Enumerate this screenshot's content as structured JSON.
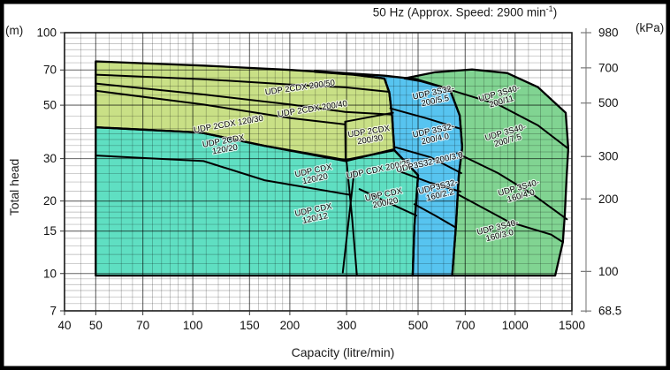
{
  "figure": {
    "title": {
      "prefix": "50 Hz (Approx. Speed: 2900 min",
      "sup": "-1",
      "suffix": ")"
    },
    "left_unit": "(m)",
    "right_unit": "(kPa)",
    "y_axis_title": "Total head",
    "x_axis_title": "Capacity (litre/min)"
  },
  "chart_data": {
    "type": "area",
    "title": "50 Hz (Approx. Speed: 2900 min^-1)",
    "x_axis": {
      "label": "Capacity (litre/min)",
      "scale": "log",
      "range": [
        40,
        1500
      ],
      "major_ticks": [
        40,
        50,
        70,
        100,
        150,
        200,
        300,
        500,
        700,
        1000,
        1500
      ],
      "minor_ticks": [
        45,
        55,
        60,
        65,
        75,
        80,
        85,
        90,
        95,
        110,
        120,
        130,
        140,
        160,
        170,
        180,
        190,
        220,
        240,
        260,
        280,
        320,
        340,
        360,
        380,
        400,
        420,
        440,
        460,
        480,
        550,
        600,
        650,
        750,
        800,
        850,
        900,
        950,
        1100,
        1200,
        1300,
        1400
      ]
    },
    "y_axis": {
      "label": "Total head (m)",
      "scale": "log",
      "range": [
        7,
        100
      ],
      "major_ticks": [
        100,
        70,
        50,
        30,
        20,
        15,
        10,
        7
      ],
      "minor_ticks": [
        7.5,
        8,
        8.5,
        9,
        9.5,
        11,
        12,
        13,
        14,
        16,
        17,
        18,
        19,
        22,
        24,
        26,
        28,
        32,
        34,
        36,
        38,
        40,
        45,
        55,
        60,
        65,
        75,
        80,
        85,
        90,
        95
      ]
    },
    "y_axis_right": {
      "label": "kPa",
      "ticks": [
        980,
        700,
        500,
        300,
        200,
        100,
        68.5
      ],
      "kpa_per_m": 9.8
    },
    "grid": "log-log, minor and major lines",
    "legend_position": "labels inside regions",
    "families": [
      {
        "name": "udp-2cdx",
        "color": "#c9e086",
        "points": [
          [
            50,
            76
          ],
          [
            108,
            73
          ],
          [
            201,
            70
          ],
          [
            239,
            69
          ],
          [
            315,
            67
          ],
          [
            393,
            64.5
          ],
          [
            407,
            56.5
          ],
          [
            415,
            45.3
          ],
          [
            422,
            32.8
          ],
          [
            298,
            29.3
          ],
          [
            167,
            33.9
          ],
          [
            106,
            38.5
          ],
          [
            50,
            40.5
          ]
        ]
      },
      {
        "name": "udp-cdx",
        "color": "#5fdfc2",
        "points": [
          [
            50,
            40.5
          ],
          [
            106,
            38.5
          ],
          [
            167,
            33.9
          ],
          [
            297,
            29.6
          ],
          [
            422,
            32.5
          ],
          [
            500,
            25.6
          ],
          [
            487,
            15.7
          ],
          [
            481,
            9.8
          ],
          [
            50,
            9.8
          ]
        ]
      },
      {
        "name": "udp-3s32",
        "color": "#57c4f0",
        "points": [
          [
            239,
            69.4
          ],
          [
            315,
            67.6
          ],
          [
            393,
            66.3
          ],
          [
            494,
            64.1
          ],
          [
            627,
            58.2
          ],
          [
            673,
            45.3
          ],
          [
            685,
            33.4
          ],
          [
            669,
            25.6
          ],
          [
            655,
            15.7
          ],
          [
            638,
            9.8
          ],
          [
            481,
            9.8
          ],
          [
            487,
            15.7
          ],
          [
            500,
            25.6
          ],
          [
            422,
            32.5
          ],
          [
            415,
            45.3
          ],
          [
            407,
            56.5
          ],
          [
            393,
            64.5
          ],
          [
            315,
            66.9
          ],
          [
            239,
            68.8
          ]
        ]
      },
      {
        "name": "udp-3s40",
        "color": "#81d492",
        "points": [
          [
            454,
            64.6
          ],
          [
            565,
            68.5
          ],
          [
            735,
            70.3
          ],
          [
            944,
            68
          ],
          [
            1177,
            59.4
          ],
          [
            1435,
            46.5
          ],
          [
            1462,
            33
          ],
          [
            1444,
            25
          ],
          [
            1426,
            17.6
          ],
          [
            1406,
            13.5
          ],
          [
            1331,
            9.8
          ],
          [
            638,
            9.8
          ],
          [
            655,
            15.7
          ],
          [
            669,
            25.6
          ],
          [
            685,
            33.4
          ],
          [
            673,
            45.3
          ],
          [
            627,
            58.2
          ],
          [
            510,
            62.9
          ]
        ]
      }
    ],
    "boundaries": [
      {
        "points": [
          [
            50,
            66.9
          ],
          [
            108,
            64.1
          ],
          [
            201,
            60.9
          ],
          [
            297,
            59.3
          ],
          [
            407,
            56.8
          ]
        ]
      },
      {
        "points": [
          [
            50,
            61.5
          ],
          [
            108,
            55.4
          ],
          [
            201,
            50.3
          ],
          [
            297,
            46.9
          ],
          [
            415,
            45.7
          ]
        ]
      },
      {
        "points": [
          [
            50,
            57.4
          ],
          [
            108,
            50.3
          ],
          [
            201,
            44.2
          ],
          [
            297,
            41.6
          ]
        ]
      },
      {
        "points": [
          [
            297,
            42.7
          ],
          [
            418,
            46.5
          ]
        ]
      },
      {
        "points": [
          [
            297,
            42.7
          ],
          [
            298,
            29.3
          ]
        ]
      },
      {
        "points": [
          [
            50,
            30.9
          ],
          [
            108,
            29.3
          ],
          [
            167,
            24.4
          ],
          [
            308,
            21.2
          ]
        ]
      },
      {
        "points": [
          [
            300,
            29.1
          ],
          [
            312,
            17.1
          ],
          [
            323,
            9.8
          ]
        ]
      },
      {
        "points": [
          [
            317,
            26.7
          ],
          [
            292,
            10.1
          ]
        ]
      },
      {
        "points": [
          [
            329,
            22.4
          ],
          [
            400,
            19.8
          ],
          [
            494,
            17.4
          ]
        ]
      },
      {
        "points": [
          [
            410,
            48.5
          ],
          [
            528,
            44.2
          ],
          [
            681,
            39.8
          ]
        ]
      },
      {
        "points": [
          [
            420,
            33.6
          ],
          [
            546,
            30.4
          ],
          [
            681,
            26.1
          ]
        ]
      },
      {
        "points": [
          [
            440,
            26.5
          ],
          [
            546,
            23.8
          ],
          [
            677,
            21.9
          ]
        ]
      },
      {
        "points": [
          [
            487,
            19.4
          ],
          [
            565,
            17.4
          ],
          [
            655,
            15.5
          ]
        ]
      },
      {
        "points": [
          [
            627,
            57.9
          ],
          [
            886,
            50.3
          ],
          [
            1177,
            41.2
          ],
          [
            1462,
            33
          ]
        ]
      },
      {
        "points": [
          [
            660,
            31.6
          ],
          [
            886,
            26.1
          ],
          [
            1140,
            21.2
          ],
          [
            1448,
            16.8
          ]
        ]
      },
      {
        "points": [
          [
            669,
            21.2
          ],
          [
            956,
            16.4
          ],
          [
            1294,
            14.5
          ],
          [
            1406,
            13.5
          ]
        ]
      }
    ],
    "region_labels": [
      {
        "name": "udp-2cdx-200-50",
        "lines": [
          "UDP 2CDX 200/50"
        ],
        "cap": 215,
        "head": 59.5,
        "rot": -8
      },
      {
        "name": "udp-2cdx-200-40",
        "lines": [
          "UDP 2CDX 200/40"
        ],
        "cap": 235,
        "head": 48.5,
        "rot": -9
      },
      {
        "name": "udp-2cdx-120-30",
        "lines": [
          "UDP 2CDX 120/30"
        ],
        "cap": 129,
        "head": 41.9,
        "rot": -10
      },
      {
        "name": "udp-2cdx-120-20",
        "lines": [
          "UDP 2CDX",
          "120/20"
        ],
        "cap": 125,
        "head": 34.2,
        "rot": -10
      },
      {
        "name": "udp-2cdx-200-30",
        "lines": [
          "UDP 2CDX",
          "200/30"
        ],
        "cap": 353,
        "head": 37.5,
        "rot": -9
      },
      {
        "name": "udp-cdx-120-20",
        "lines": [
          "UDP CDX",
          "120/20"
        ],
        "cap": 238,
        "head": 25.8,
        "rot": -12
      },
      {
        "name": "udp-cdx-200-25",
        "lines": [
          "UDP CDX 200/25"
        ],
        "cap": 377,
        "head": 27.2,
        "rot": -12
      },
      {
        "name": "udp-cdx-200-20",
        "lines": [
          "UDP CDX",
          "200/20"
        ],
        "cap": 393,
        "head": 20.5,
        "rot": -12
      },
      {
        "name": "udp-cdx-120-12",
        "lines": [
          "UDP CDX",
          "120/12"
        ],
        "cap": 238,
        "head": 17.7,
        "rot": -12
      },
      {
        "name": "udp-3s32-200-5-5",
        "lines": [
          "UDP 3S32-",
          "200/5.5"
        ],
        "cap": 561,
        "head": 54.4,
        "rot": -12
      },
      {
        "name": "udp-3s32-200-4-0",
        "lines": [
          "UDP 3S32-",
          "200/4.0"
        ],
        "cap": 561,
        "head": 37.8,
        "rot": -12
      },
      {
        "name": "udp-3s32-200-3-0",
        "lines": [
          "UDP3S32-200/3.0"
        ],
        "cap": 542,
        "head": 29.1,
        "rot": -13
      },
      {
        "name": "udp-3s32-160-2-2",
        "lines": [
          "UDP3S32-",
          "160/2.2"
        ],
        "cap": 580,
        "head": 22.1,
        "rot": -14
      },
      {
        "name": "udp-3s40-200-11",
        "lines": [
          "UDP 3S40-",
          "200/11"
        ],
        "cap": 899,
        "head": 54,
        "rot": -16
      },
      {
        "name": "udp-3s40-200-7-5",
        "lines": [
          "UDP 3S40-",
          "200/7.5"
        ],
        "cap": 940,
        "head": 37.2,
        "rot": -16
      },
      {
        "name": "udp-3s40-160-4-0",
        "lines": [
          "UDP 3S40-",
          "160/4.0"
        ],
        "cap": 1033,
        "head": 21.9,
        "rot": -16
      },
      {
        "name": "udp-3s40-160-3-0",
        "lines": [
          "UDP 3S40-",
          "160/3.0"
        ],
        "cap": 888,
        "head": 15,
        "rot": -14
      }
    ]
  }
}
